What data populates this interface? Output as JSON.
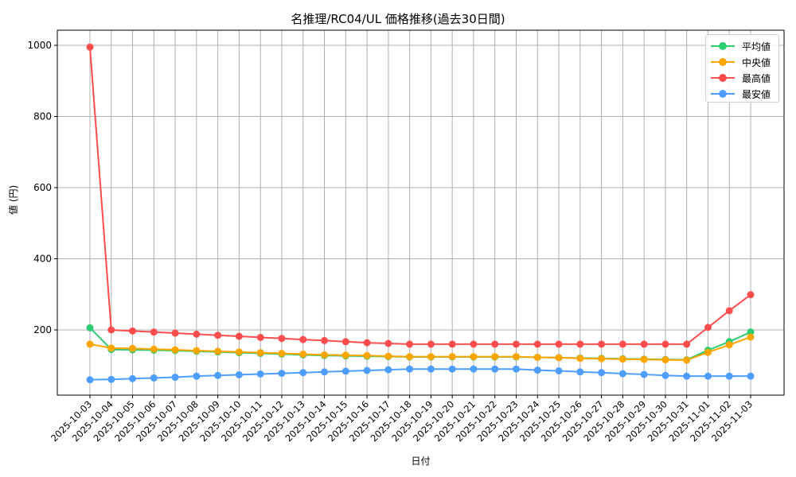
{
  "chart_data": {
    "type": "line",
    "title": "名推理/RC04/UL 価格推移(過去30日間)",
    "xlabel": "日付",
    "ylabel": "値 (円)",
    "ylim": [
      20,
      1040
    ],
    "yticks": [
      200,
      400,
      600,
      800,
      1000
    ],
    "grid": true,
    "legend_position": "upper right",
    "x": [
      "2025-10-03",
      "2025-10-04",
      "2025-10-05",
      "2025-10-06",
      "2025-10-07",
      "2025-10-08",
      "2025-10-09",
      "2025-10-10",
      "2025-10-11",
      "2025-10-12",
      "2025-10-13",
      "2025-10-14",
      "2025-10-15",
      "2025-10-16",
      "2025-10-17",
      "2025-10-18",
      "2025-10-19",
      "2025-10-20",
      "2025-10-21",
      "2025-10-22",
      "2025-10-23",
      "2025-10-24",
      "2025-10-25",
      "2025-10-26",
      "2025-10-27",
      "2025-10-28",
      "2025-10-29",
      "2025-10-30",
      "2025-10-31",
      "2025-11-01",
      "2025-11-02",
      "2025-11-03"
    ],
    "series": [
      {
        "name": "平均値",
        "color": "#2ecc71",
        "values": [
          206,
          145,
          144,
          143,
          142,
          140,
          138,
          136,
          134,
          132,
          130,
          128,
          127,
          126,
          125,
          124,
          124,
          124,
          124,
          124,
          124,
          123,
          122,
          121,
          120,
          119,
          118,
          117,
          116,
          143,
          167,
          194
        ]
      },
      {
        "name": "中央値",
        "color": "#ffa500",
        "values": [
          160,
          149,
          148,
          146,
          144,
          142,
          140,
          138,
          136,
          134,
          132,
          130,
          129,
          128,
          126,
          125,
          125,
          125,
          125,
          125,
          125,
          123,
          122,
          120,
          119,
          118,
          117,
          116,
          115,
          137,
          158,
          180
        ]
      },
      {
        "name": "最高値",
        "color": "#ff4d4d",
        "values": [
          995,
          200,
          197,
          194,
          191,
          188,
          185,
          182,
          179,
          176,
          173,
          170,
          167,
          164,
          162,
          160,
          160,
          160,
          160,
          160,
          160,
          160,
          160,
          160,
          160,
          160,
          160,
          160,
          160,
          207,
          254,
          299
        ]
      },
      {
        "name": "最安値",
        "color": "#4d9eff",
        "values": [
          60,
          61,
          63,
          65,
          67,
          70,
          72,
          74,
          76,
          78,
          80,
          82,
          84,
          86,
          88,
          90,
          90,
          90,
          90,
          90,
          90,
          87,
          85,
          82,
          80,
          77,
          75,
          72,
          70,
          70,
          70,
          70
        ]
      }
    ]
  },
  "legend": {
    "items": [
      {
        "label": "平均値",
        "color": "#2ecc71"
      },
      {
        "label": "中央値",
        "color": "#ffa500"
      },
      {
        "label": "最高値",
        "color": "#ff4d4d"
      },
      {
        "label": "最安値",
        "color": "#4d9eff"
      }
    ]
  }
}
